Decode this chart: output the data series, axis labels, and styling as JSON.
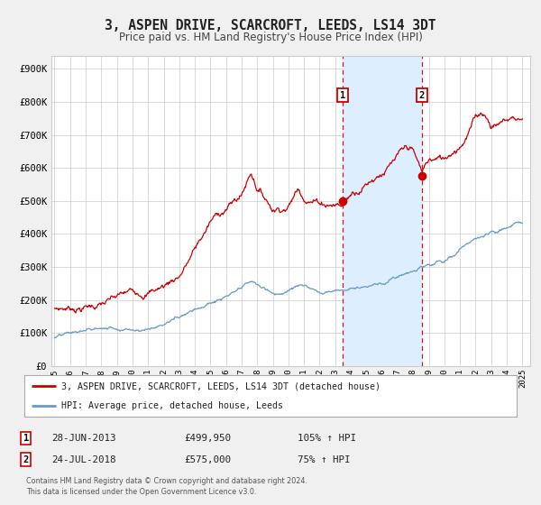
{
  "title": "3, ASPEN DRIVE, SCARCROFT, LEEDS, LS14 3DT",
  "subtitle": "Price paid vs. HM Land Registry's House Price Index (HPI)",
  "title_fontsize": 10.5,
  "subtitle_fontsize": 8.5,
  "background_color": "#f0f0f0",
  "plot_bg_color": "#ffffff",
  "grid_color": "#cccccc",
  "ylabel_ticks": [
    "£0",
    "£100K",
    "£200K",
    "£300K",
    "£400K",
    "£500K",
    "£600K",
    "£700K",
    "£800K",
    "£900K"
  ],
  "ytick_values": [
    0,
    100000,
    200000,
    300000,
    400000,
    500000,
    600000,
    700000,
    800000,
    900000
  ],
  "ylim": [
    0,
    940000
  ],
  "xlim_start": 1994.8,
  "xlim_end": 2025.5,
  "xtick_years": [
    1995,
    1996,
    1997,
    1998,
    1999,
    2000,
    2001,
    2002,
    2003,
    2004,
    2005,
    2006,
    2007,
    2008,
    2009,
    2010,
    2011,
    2012,
    2013,
    2014,
    2015,
    2016,
    2017,
    2018,
    2019,
    2020,
    2021,
    2022,
    2023,
    2024,
    2025
  ],
  "sale1_x": 2013.49,
  "sale1_y": 499950,
  "sale1_label": "1",
  "sale1_date": "28-JUN-2013",
  "sale1_price": "£499,950",
  "sale1_hpi": "105% ↑ HPI",
  "sale2_x": 2018.56,
  "sale2_y": 575000,
  "sale2_label": "2",
  "sale2_date": "24-JUL-2018",
  "sale2_price": "£575,000",
  "sale2_hpi": "75% ↑ HPI",
  "property_color": "#cc0000",
  "hpi_color": "#6699cc",
  "shading_color": "#ddeeff",
  "legend_label_property": "3, ASPEN DRIVE, SCARCROFT, LEEDS, LS14 3DT (detached house)",
  "legend_label_hpi": "HPI: Average price, detached house, Leeds",
  "footer1": "Contains HM Land Registry data © Crown copyright and database right 2024.",
  "footer2": "This data is licensed under the Open Government Licence v3.0."
}
